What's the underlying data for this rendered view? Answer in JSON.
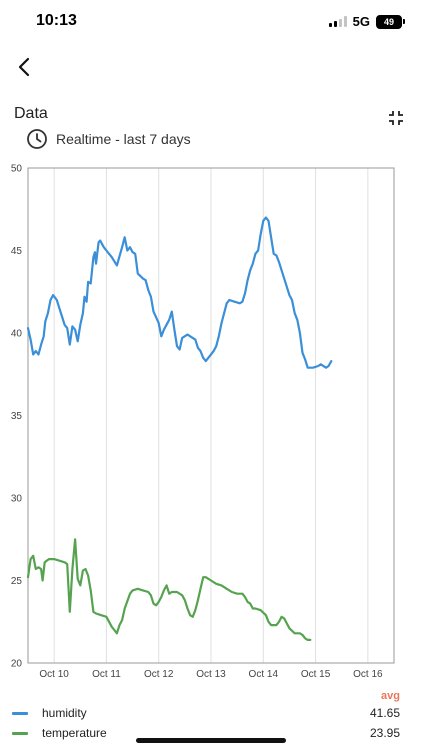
{
  "status_bar": {
    "time": "10:13",
    "network": "5G",
    "battery": "49"
  },
  "header": {
    "back_icon": "chevron-left-icon",
    "collapse_icon": "collapse-icon"
  },
  "section": {
    "title": "Data",
    "range_icon": "clock-icon",
    "range_label": "Realtime - last 7 days"
  },
  "colors": {
    "humidity": "#3a8fd8",
    "temperature": "#55a34f",
    "avg_label": "#e8775c",
    "grid": "#e0e0e0",
    "axis": "#9a9a9a"
  },
  "chart_data": {
    "type": "line",
    "ylim": [
      20,
      50
    ],
    "yticks": [
      "20",
      "25",
      "30",
      "35",
      "40",
      "45",
      "50"
    ],
    "xlim": [
      9.5,
      16.5
    ],
    "xticks": [
      {
        "x": 10,
        "label": "Oct 10"
      },
      {
        "x": 11,
        "label": "Oct 11"
      },
      {
        "x": 12,
        "label": "Oct 12"
      },
      {
        "x": 13,
        "label": "Oct 13"
      },
      {
        "x": 14,
        "label": "Oct 14"
      },
      {
        "x": 15,
        "label": "Oct 15"
      },
      {
        "x": 16,
        "label": "Oct 16"
      }
    ],
    "grid": true,
    "series": [
      {
        "name": "humidity",
        "color": "#3a8fd8",
        "points": [
          [
            9.5,
            40.3
          ],
          [
            9.55,
            39.6
          ],
          [
            9.6,
            38.7
          ],
          [
            9.65,
            38.9
          ],
          [
            9.7,
            38.7
          ],
          [
            9.75,
            39.3
          ],
          [
            9.8,
            39.8
          ],
          [
            9.83,
            40.7
          ],
          [
            9.88,
            41.2
          ],
          [
            9.93,
            42.0
          ],
          [
            9.98,
            42.3
          ],
          [
            10.05,
            42.0
          ],
          [
            10.1,
            41.5
          ],
          [
            10.15,
            41.0
          ],
          [
            10.2,
            40.5
          ],
          [
            10.25,
            40.3
          ],
          [
            10.3,
            39.3
          ],
          [
            10.35,
            40.4
          ],
          [
            10.4,
            40.2
          ],
          [
            10.45,
            39.5
          ],
          [
            10.5,
            40.5
          ],
          [
            10.55,
            41.2
          ],
          [
            10.58,
            42.2
          ],
          [
            10.62,
            41.9
          ],
          [
            10.65,
            43.1
          ],
          [
            10.7,
            43.0
          ],
          [
            10.75,
            44.6
          ],
          [
            10.78,
            44.9
          ],
          [
            10.8,
            44.2
          ],
          [
            10.85,
            45.5
          ],
          [
            10.88,
            45.6
          ],
          [
            10.95,
            45.2
          ],
          [
            11.0,
            45.0
          ],
          [
            11.1,
            44.6
          ],
          [
            11.2,
            44.1
          ],
          [
            11.3,
            45.2
          ],
          [
            11.35,
            45.8
          ],
          [
            11.4,
            45.0
          ],
          [
            11.45,
            45.2
          ],
          [
            11.5,
            44.9
          ],
          [
            11.55,
            44.8
          ],
          [
            11.6,
            43.6
          ],
          [
            11.7,
            43.3
          ],
          [
            11.75,
            43.2
          ],
          [
            11.8,
            42.6
          ],
          [
            11.85,
            42.2
          ],
          [
            11.9,
            41.3
          ],
          [
            12.0,
            40.6
          ],
          [
            12.05,
            39.8
          ],
          [
            12.1,
            40.2
          ],
          [
            12.2,
            40.8
          ],
          [
            12.25,
            41.3
          ],
          [
            12.3,
            40.2
          ],
          [
            12.35,
            39.2
          ],
          [
            12.4,
            39.0
          ],
          [
            12.45,
            39.7
          ],
          [
            12.55,
            39.9
          ],
          [
            12.65,
            39.7
          ],
          [
            12.7,
            39.6
          ],
          [
            12.75,
            39.1
          ],
          [
            12.8,
            38.9
          ],
          [
            12.85,
            38.5
          ],
          [
            12.9,
            38.3
          ],
          [
            13.0,
            38.7
          ],
          [
            13.05,
            38.9
          ],
          [
            13.1,
            39.2
          ],
          [
            13.15,
            39.8
          ],
          [
            13.2,
            40.6
          ],
          [
            13.3,
            41.8
          ],
          [
            13.35,
            42.0
          ],
          [
            13.45,
            41.9
          ],
          [
            13.55,
            41.8
          ],
          [
            13.6,
            41.9
          ],
          [
            13.65,
            42.4
          ],
          [
            13.7,
            43.2
          ],
          [
            13.75,
            43.8
          ],
          [
            13.8,
            44.2
          ],
          [
            13.85,
            44.8
          ],
          [
            13.9,
            45.0
          ],
          [
            13.95,
            46.0
          ],
          [
            14.0,
            46.8
          ],
          [
            14.05,
            47.0
          ],
          [
            14.1,
            46.8
          ],
          [
            14.15,
            45.8
          ],
          [
            14.2,
            44.8
          ],
          [
            14.25,
            44.7
          ],
          [
            14.3,
            44.3
          ],
          [
            14.35,
            43.8
          ],
          [
            14.4,
            43.3
          ],
          [
            14.45,
            42.8
          ],
          [
            14.5,
            42.3
          ],
          [
            14.55,
            42.0
          ],
          [
            14.6,
            41.2
          ],
          [
            14.65,
            40.8
          ],
          [
            14.7,
            40.0
          ],
          [
            14.75,
            38.8
          ],
          [
            14.8,
            38.4
          ],
          [
            14.85,
            37.9
          ],
          [
            14.95,
            37.9
          ],
          [
            15.05,
            38.0
          ],
          [
            15.1,
            38.1
          ],
          [
            15.2,
            37.9
          ],
          [
            15.25,
            38.0
          ],
          [
            15.3,
            38.3
          ]
        ]
      },
      {
        "name": "temperature",
        "color": "#55a34f",
        "points": [
          [
            9.5,
            25.2
          ],
          [
            9.55,
            26.3
          ],
          [
            9.6,
            26.5
          ],
          [
            9.65,
            25.7
          ],
          [
            9.7,
            25.8
          ],
          [
            9.75,
            25.7
          ],
          [
            9.78,
            25.0
          ],
          [
            9.82,
            26.1
          ],
          [
            9.9,
            26.3
          ],
          [
            10.0,
            26.3
          ],
          [
            10.1,
            26.2
          ],
          [
            10.2,
            26.1
          ],
          [
            10.25,
            26.0
          ],
          [
            10.3,
            23.1
          ],
          [
            10.35,
            25.7
          ],
          [
            10.4,
            27.5
          ],
          [
            10.45,
            25.1
          ],
          [
            10.5,
            24.7
          ],
          [
            10.55,
            25.6
          ],
          [
            10.6,
            25.7
          ],
          [
            10.65,
            25.3
          ],
          [
            10.7,
            24.4
          ],
          [
            10.75,
            23.1
          ],
          [
            10.8,
            23.0
          ],
          [
            10.9,
            22.9
          ],
          [
            11.0,
            22.8
          ],
          [
            11.1,
            22.2
          ],
          [
            11.15,
            22.0
          ],
          [
            11.2,
            21.8
          ],
          [
            11.25,
            22.3
          ],
          [
            11.3,
            22.6
          ],
          [
            11.35,
            23.3
          ],
          [
            11.45,
            24.2
          ],
          [
            11.5,
            24.4
          ],
          [
            11.6,
            24.5
          ],
          [
            11.7,
            24.4
          ],
          [
            11.8,
            24.3
          ],
          [
            11.85,
            24.1
          ],
          [
            11.9,
            23.6
          ],
          [
            11.95,
            23.5
          ],
          [
            12.0,
            23.7
          ],
          [
            12.05,
            24.0
          ],
          [
            12.1,
            24.4
          ],
          [
            12.15,
            24.7
          ],
          [
            12.2,
            24.2
          ],
          [
            12.25,
            24.3
          ],
          [
            12.35,
            24.3
          ],
          [
            12.45,
            24.1
          ],
          [
            12.5,
            23.8
          ],
          [
            12.55,
            23.3
          ],
          [
            12.6,
            22.9
          ],
          [
            12.65,
            22.8
          ],
          [
            12.7,
            23.2
          ],
          [
            12.75,
            23.8
          ],
          [
            12.8,
            24.5
          ],
          [
            12.85,
            25.2
          ],
          [
            12.9,
            25.2
          ],
          [
            13.0,
            25.0
          ],
          [
            13.1,
            24.8
          ],
          [
            13.2,
            24.7
          ],
          [
            13.3,
            24.5
          ],
          [
            13.4,
            24.3
          ],
          [
            13.5,
            24.2
          ],
          [
            13.6,
            24.2
          ],
          [
            13.65,
            24.0
          ],
          [
            13.7,
            23.7
          ],
          [
            13.75,
            23.6
          ],
          [
            13.8,
            23.3
          ],
          [
            13.85,
            23.3
          ],
          [
            13.95,
            23.2
          ],
          [
            14.05,
            22.9
          ],
          [
            14.1,
            22.5
          ],
          [
            14.15,
            22.3
          ],
          [
            14.25,
            22.3
          ],
          [
            14.3,
            22.5
          ],
          [
            14.35,
            22.8
          ],
          [
            14.4,
            22.7
          ],
          [
            14.45,
            22.4
          ],
          [
            14.5,
            22.1
          ],
          [
            14.6,
            21.8
          ],
          [
            14.65,
            21.8
          ],
          [
            14.7,
            21.8
          ],
          [
            14.75,
            21.7
          ],
          [
            14.8,
            21.5
          ],
          [
            14.85,
            21.4
          ],
          [
            14.9,
            21.4
          ]
        ]
      }
    ]
  },
  "legend": {
    "avg_header": "avg",
    "rows": [
      {
        "name": "humidity",
        "avg": "41.65"
      },
      {
        "name": "temperature",
        "avg": "23.95"
      }
    ]
  }
}
